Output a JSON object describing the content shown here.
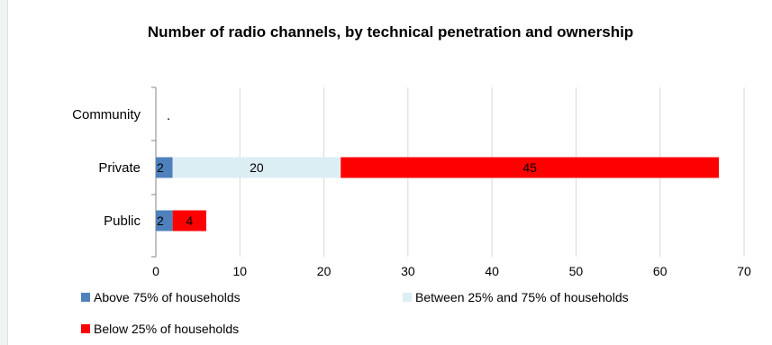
{
  "chart_data": {
    "type": "bar",
    "orientation": "horizontal",
    "stacked": true,
    "title": "Number of radio channels,  by technical penetration and  ownership",
    "categories": [
      "Community",
      "Private",
      "Public"
    ],
    "community_marker": ".",
    "series": [
      {
        "name": "Above 75% of households",
        "color": "#4f81bd",
        "values": [
          null,
          2,
          2
        ]
      },
      {
        "name": "Between 25% and 75% of households",
        "color": "#dbeef4",
        "values": [
          null,
          20,
          null
        ]
      },
      {
        "name": "Below 25% of households",
        "color": "#ff0000",
        "values": [
          null,
          45,
          4
        ]
      }
    ],
    "xlim": [
      0,
      70
    ],
    "xticks": [
      "0",
      "10",
      "20",
      "30",
      "40",
      "50",
      "60",
      "70"
    ],
    "grid": true,
    "legend": "bottom"
  }
}
